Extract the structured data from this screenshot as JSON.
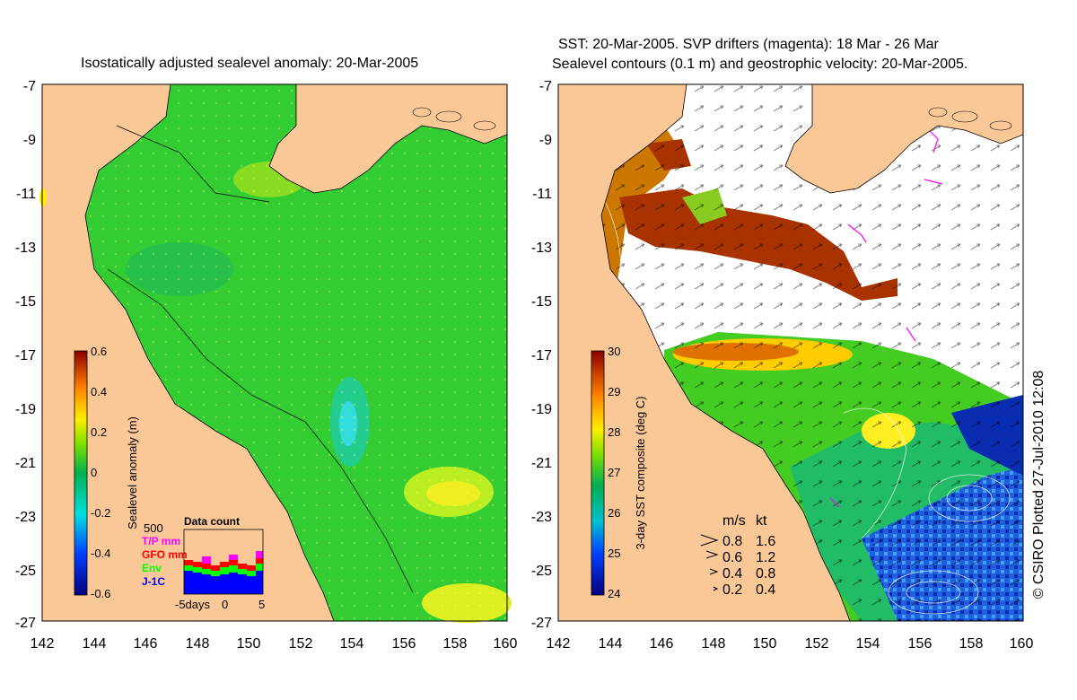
{
  "left_map": {
    "title": "Isostatically adjusted sealevel anomaly: 20-Mar-2005",
    "x_ticks": [
      "142",
      "144",
      "146",
      "148",
      "150",
      "152",
      "154",
      "156",
      "158",
      "160"
    ],
    "y_ticks": [
      "-7",
      "-9",
      "-11",
      "-13",
      "-15",
      "-17",
      "-19",
      "-21",
      "-23",
      "-25",
      "-27"
    ],
    "colorbar": {
      "label": "Sealevel anomaly (m)",
      "ticks": [
        "0.6",
        "0.4",
        "0.2",
        "0",
        "-0.2",
        "-0.4",
        "-0.6"
      ],
      "range": [
        -0.6,
        0.6
      ]
    },
    "data_count": {
      "title": "Data count",
      "max_label": "500",
      "legend": [
        {
          "label": "T/P mm",
          "color": "#ff00ff"
        },
        {
          "label": "GFO mm",
          "color": "#ff0000"
        },
        {
          "label": "Env",
          "color": "#00ff00"
        },
        {
          "label": "J-1C",
          "color": "#0000ff"
        }
      ],
      "x_labels": [
        "-5days",
        "0",
        "5"
      ]
    }
  },
  "right_map": {
    "title_line1": "SST: 20-Mar-2005. SVP drifters (magenta): 18 Mar - 26 Mar",
    "title_line2": "Sealevel contours (0.1 m) and geostrophic velocity: 20-Mar-2005.",
    "x_ticks": [
      "142",
      "144",
      "146",
      "148",
      "150",
      "152",
      "154",
      "156",
      "158",
      "160"
    ],
    "y_ticks": [
      "-7",
      "-9",
      "-11",
      "-13",
      "-15",
      "-17",
      "-19",
      "-21",
      "-23",
      "-25",
      "-27"
    ],
    "colorbar": {
      "label": "3-day SST composite (deg C)",
      "ticks": [
        "30",
        "29",
        "28",
        "27",
        "26",
        "25",
        "24"
      ],
      "range": [
        24,
        30
      ]
    },
    "velocity_legend": {
      "header_ms": "m/s",
      "header_kt": "kt",
      "rows": [
        {
          "ms": "0.8",
          "kt": "1.6"
        },
        {
          "ms": "0.6",
          "kt": "1.2"
        },
        {
          "ms": "0.4",
          "kt": "0.8"
        },
        {
          "ms": "0.2",
          "kt": "0.4"
        }
      ]
    }
  },
  "credit": "© CSIRO Plotted 27-Jul-2010 12:08",
  "colors": {
    "land": "#f9c896",
    "sea_base": "#33cc33",
    "sst_cloud": "#ffffff"
  }
}
